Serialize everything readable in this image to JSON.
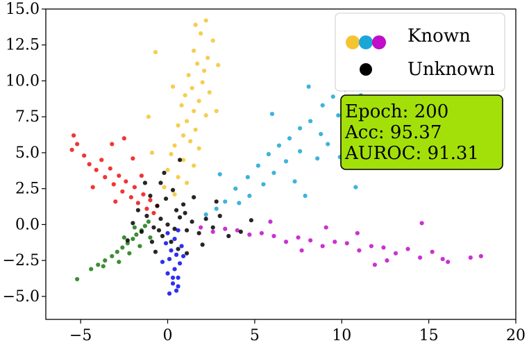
{
  "chart_data": {
    "type": "scatter",
    "title": "",
    "xlabel": "",
    "ylabel": "",
    "xlim": [
      -7.0,
      20.0
    ],
    "ylim": [
      -6.6,
      15.0
    ],
    "xticks": [
      -5,
      0,
      5,
      10,
      15,
      20
    ],
    "xtick_labels": [
      "−5",
      "0",
      "5",
      "10",
      "15",
      "20"
    ],
    "yticks": [
      -5.0,
      -2.5,
      0.0,
      2.5,
      5.0,
      7.5,
      10.0,
      12.5,
      15.0
    ],
    "ytick_labels": [
      "−5.0",
      "−2.5",
      "0.0",
      "2.5",
      "5.0",
      "7.5",
      "10.0",
      "12.5",
      "15.0"
    ],
    "grid": false,
    "legend": {
      "placement": "top-right",
      "entries": [
        {
          "label": "Known",
          "colors": [
            "#f5c431",
            "#1ba6d6",
            "#c00ec9"
          ]
        },
        {
          "label": "Unknown",
          "colors": [
            "#000000"
          ]
        }
      ]
    },
    "annotation": {
      "placement": "right",
      "background": "#a3e00a",
      "lines": [
        "Epoch: 200",
        "Acc: 95.37",
        "AUROC: 91.31"
      ]
    },
    "series": [
      {
        "color": "#f5c431",
        "points": [
          [
            2.2,
            14.2
          ],
          [
            1.9,
            13.3
          ],
          [
            2.6,
            12.8
          ],
          [
            1.5,
            12.1
          ],
          [
            -0.7,
            12.0
          ],
          [
            2.3,
            11.6
          ],
          [
            1.7,
            11.2
          ],
          [
            2.1,
            10.7
          ],
          [
            1.2,
            10.4
          ],
          [
            2.0,
            9.9
          ],
          [
            1.4,
            9.5
          ],
          [
            2.4,
            9.2
          ],
          [
            1.0,
            9.0
          ],
          [
            1.8,
            8.6
          ],
          [
            0.8,
            8.3
          ],
          [
            1.5,
            7.9
          ],
          [
            2.2,
            7.6
          ],
          [
            1.1,
            7.2
          ],
          [
            0.6,
            6.9
          ],
          [
            1.6,
            6.6
          ],
          [
            0.9,
            6.2
          ],
          [
            1.3,
            5.8
          ],
          [
            0.4,
            5.5
          ],
          [
            1.8,
            5.3
          ],
          [
            0.2,
            4.9
          ],
          [
            0.9,
            4.5
          ],
          [
            1.5,
            4.1
          ],
          [
            0.0,
            3.8
          ],
          [
            0.6,
            3.3
          ],
          [
            1.1,
            2.9
          ],
          [
            -0.2,
            2.6
          ],
          [
            0.4,
            2.1
          ],
          [
            -1.1,
            7.5
          ],
          [
            -0.9,
            5.0
          ],
          [
            2.8,
            7.9
          ],
          [
            0.3,
            9.6
          ],
          [
            2.9,
            11.1
          ],
          [
            1.6,
            13.9
          ]
        ]
      },
      {
        "color": "#1ba6d6",
        "points": [
          [
            10.6,
            10.5
          ],
          [
            10.2,
            9.4
          ],
          [
            9.5,
            8.9
          ],
          [
            8.9,
            8.3
          ],
          [
            9.8,
            7.6
          ],
          [
            8.2,
            7.2
          ],
          [
            7.6,
            6.7
          ],
          [
            8.8,
            6.3
          ],
          [
            7.0,
            6.0
          ],
          [
            6.4,
            5.5
          ],
          [
            7.6,
            5.1
          ],
          [
            5.8,
            4.9
          ],
          [
            6.8,
            4.4
          ],
          [
            5.2,
            4.1
          ],
          [
            6.1,
            3.6
          ],
          [
            4.6,
            3.3
          ],
          [
            5.5,
            2.8
          ],
          [
            3.9,
            2.5
          ],
          [
            4.7,
            2.0
          ],
          [
            3.3,
            1.6
          ],
          [
            2.8,
            1.1
          ],
          [
            4.1,
            1.5
          ],
          [
            2.2,
            0.7
          ],
          [
            11.1,
            9.0
          ],
          [
            10.6,
            6.9
          ],
          [
            9.9,
            4.7
          ],
          [
            10.8,
            2.6
          ],
          [
            7.3,
            3.0
          ],
          [
            8.6,
            4.6
          ],
          [
            9.2,
            5.6
          ],
          [
            11.2,
            10.2
          ],
          [
            8.1,
            9.6
          ],
          [
            6.0,
            7.7
          ],
          [
            3.0,
            3.5
          ],
          [
            7.9,
            2.0
          ]
        ]
      },
      {
        "color": "#c00ec9",
        "points": [
          [
            18.0,
            -2.2
          ],
          [
            17.4,
            -2.3
          ],
          [
            15.8,
            -2.4
          ],
          [
            15.2,
            -1.9
          ],
          [
            14.5,
            -2.3
          ],
          [
            13.8,
            -1.7
          ],
          [
            13.1,
            -2.0
          ],
          [
            12.4,
            -1.6
          ],
          [
            11.7,
            -1.5
          ],
          [
            11.0,
            -1.8
          ],
          [
            10.3,
            -1.3
          ],
          [
            9.6,
            -1.2
          ],
          [
            8.9,
            -1.5
          ],
          [
            8.2,
            -1.1
          ],
          [
            7.5,
            -0.9
          ],
          [
            6.8,
            -1.2
          ],
          [
            6.1,
            -0.8
          ],
          [
            5.4,
            -0.6
          ],
          [
            4.7,
            -0.7
          ],
          [
            4.0,
            -0.4
          ],
          [
            3.3,
            -0.3
          ],
          [
            2.6,
            -0.5
          ],
          [
            1.9,
            -0.2
          ],
          [
            14.6,
            0.1
          ],
          [
            16.1,
            -2.6
          ],
          [
            12.6,
            -2.5
          ],
          [
            10.9,
            -0.6
          ],
          [
            9.1,
            -0.2
          ],
          [
            7.7,
            -1.8
          ],
          [
            5.9,
            0.2
          ],
          [
            11.9,
            -2.8
          ]
        ]
      },
      {
        "color": "#f01010",
        "points": [
          [
            -5.5,
            5.2
          ],
          [
            -5.4,
            6.2
          ],
          [
            -5.2,
            5.6
          ],
          [
            -4.8,
            4.8
          ],
          [
            -4.5,
            4.2
          ],
          [
            -4.1,
            3.8
          ],
          [
            -3.8,
            4.5
          ],
          [
            -3.6,
            3.3
          ],
          [
            -3.3,
            3.9
          ],
          [
            -3.1,
            2.8
          ],
          [
            -2.8,
            3.4
          ],
          [
            -2.6,
            2.3
          ],
          [
            -2.4,
            3.0
          ],
          [
            -2.1,
            1.9
          ],
          [
            -1.9,
            2.6
          ],
          [
            -1.7,
            1.5
          ],
          [
            -1.4,
            2.1
          ],
          [
            -1.2,
            1.1
          ],
          [
            -1.0,
            1.7
          ],
          [
            -0.8,
            0.8
          ],
          [
            -3.2,
            5.6
          ],
          [
            -2.0,
            4.6
          ],
          [
            -4.3,
            2.6
          ],
          [
            -3.0,
            1.6
          ],
          [
            -2.5,
            6.0
          ],
          [
            -1.5,
            3.4
          ],
          [
            -0.6,
            1.3
          ]
        ]
      },
      {
        "color": "#1a7a10",
        "points": [
          [
            -5.2,
            -3.8
          ],
          [
            -4.4,
            -3.1
          ],
          [
            -4.0,
            -2.8
          ],
          [
            -3.6,
            -2.5
          ],
          [
            -3.2,
            -2.2
          ],
          [
            -2.9,
            -1.9
          ],
          [
            -2.6,
            -1.6
          ],
          [
            -2.3,
            -1.3
          ],
          [
            -2.0,
            -1.0
          ],
          [
            -1.8,
            -0.7
          ],
          [
            -1.5,
            -0.4
          ],
          [
            -1.3,
            -0.1
          ],
          [
            -1.1,
            0.2
          ],
          [
            -2.8,
            -2.6
          ],
          [
            -2.2,
            -2.0
          ],
          [
            -1.6,
            -1.5
          ],
          [
            -3.7,
            -2.9
          ],
          [
            -1.0,
            -0.9
          ],
          [
            -2.5,
            -0.9
          ],
          [
            -1.9,
            -0.2
          ]
        ]
      },
      {
        "color": "#0a0aee",
        "points": [
          [
            0.1,
            -4.8
          ],
          [
            0.5,
            -4.6
          ],
          [
            0.3,
            -4.1
          ],
          [
            0.6,
            -3.7
          ],
          [
            0.0,
            -3.4
          ],
          [
            0.4,
            -3.1
          ],
          [
            0.7,
            -2.7
          ],
          [
            0.1,
            -2.4
          ],
          [
            0.5,
            -2.1
          ],
          [
            0.2,
            -1.8
          ],
          [
            0.8,
            -1.5
          ],
          [
            -0.1,
            -1.3
          ],
          [
            0.4,
            -1.0
          ],
          [
            0.0,
            -0.6
          ],
          [
            0.6,
            -0.4
          ],
          [
            0.9,
            -2.2
          ],
          [
            -0.3,
            -2.6
          ],
          [
            0.3,
            -3.7
          ],
          [
            0.6,
            -4.3
          ]
        ]
      },
      {
        "color": "#000000",
        "points": [
          [
            0.0,
            0.0
          ],
          [
            -0.4,
            0.4
          ],
          [
            0.4,
            -0.3
          ],
          [
            -0.8,
            -0.2
          ],
          [
            0.7,
            0.5
          ],
          [
            -0.3,
            -0.8
          ],
          [
            0.5,
            1.0
          ],
          [
            -1.2,
            0.6
          ],
          [
            1.1,
            -0.4
          ],
          [
            -0.6,
            1.3
          ],
          [
            0.2,
            -1.2
          ],
          [
            1.4,
            0.2
          ],
          [
            -1.5,
            -0.5
          ],
          [
            0.9,
            1.4
          ],
          [
            -0.9,
            -1.2
          ],
          [
            1.8,
            -0.6
          ],
          [
            -1.7,
            1.0
          ],
          [
            2.2,
            0.4
          ],
          [
            -0.1,
            1.8
          ],
          [
            0.6,
            -1.7
          ],
          [
            2.6,
            -0.2
          ],
          [
            -2.0,
            0.1
          ],
          [
            1.5,
            1.9
          ],
          [
            -1.0,
            2.0
          ],
          [
            3.0,
            0.6
          ],
          [
            0.3,
            2.4
          ],
          [
            -0.4,
            2.9
          ],
          [
            3.5,
            -0.8
          ],
          [
            2.0,
            -1.4
          ],
          [
            -2.3,
            -1.1
          ],
          [
            4.2,
            -0.5
          ],
          [
            1.1,
            -2.0
          ],
          [
            -0.2,
            3.6
          ],
          [
            0.7,
            4.5
          ],
          [
            -1.3,
            2.9
          ],
          [
            4.8,
            0.3
          ],
          [
            -0.7,
            -1.9
          ],
          [
            2.8,
            1.6
          ],
          [
            1.0,
            0.8
          ],
          [
            -0.5,
            -0.4
          ]
        ]
      }
    ]
  }
}
